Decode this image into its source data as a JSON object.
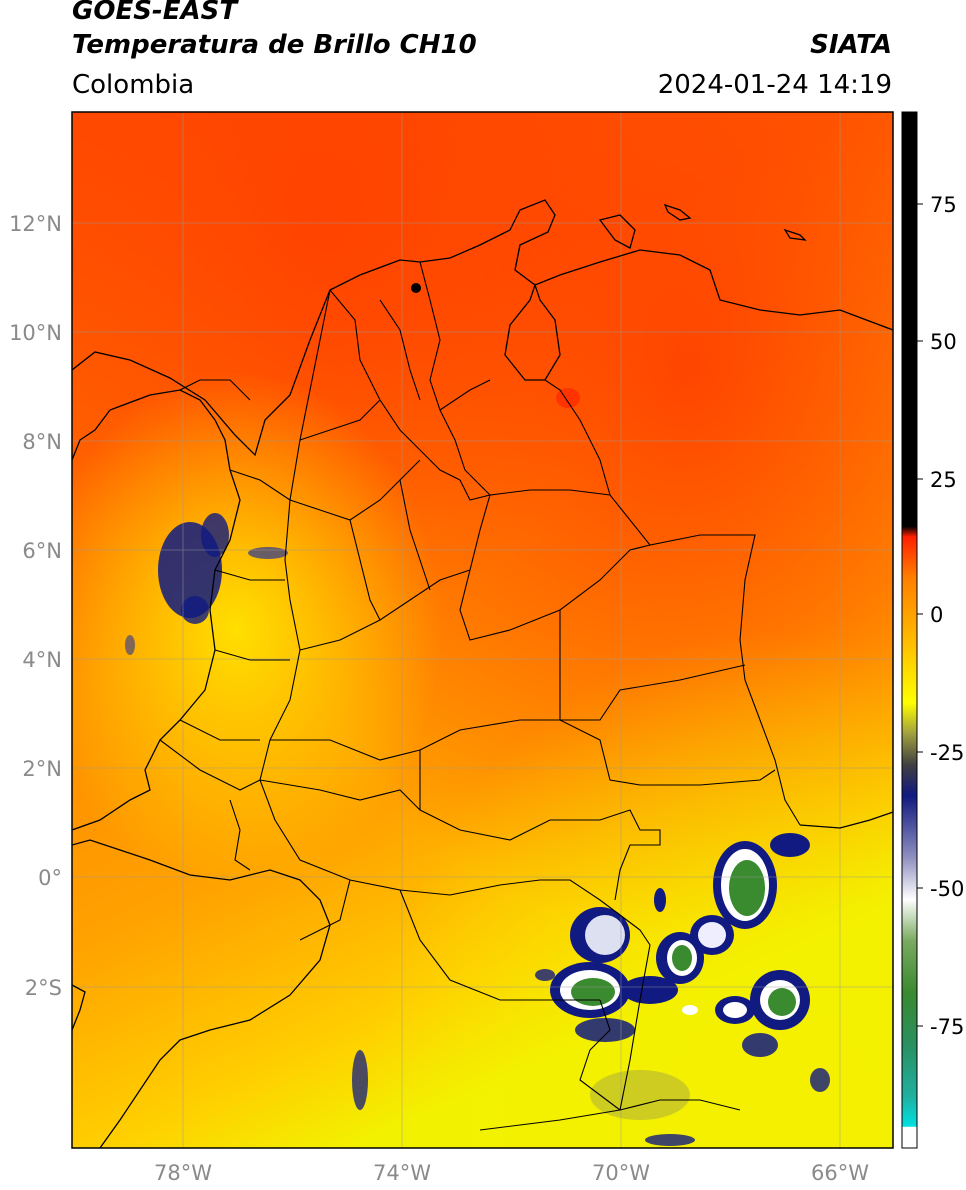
{
  "header": {
    "title_line1": "GOES-EAST",
    "title_line2": "Temperatura de Brillo CH10",
    "subtitle": "Colombia",
    "brand": "SIATA",
    "timestamp": "2024-01-24 14:19"
  },
  "map": {
    "lat_labels": [
      "12°N",
      "10°N",
      "8°N",
      "6°N",
      "4°N",
      "2°N",
      "0°",
      "2°S"
    ],
    "lon_labels": [
      "78°W",
      "74°W",
      "70°W",
      "66°W"
    ]
  },
  "colorbar": {
    "ticks": [
      "75",
      "50",
      "25",
      "0",
      "-25",
      "-50",
      "-75"
    ],
    "colors": {
      "warm": "#ff3a00",
      "orange": "#ffa000",
      "yellow": "#ffff00",
      "navy": "#101a80",
      "white": "#ffffff",
      "green": "#3a8a30",
      "cyan": "#00e0e0",
      "black": "#000000"
    }
  }
}
